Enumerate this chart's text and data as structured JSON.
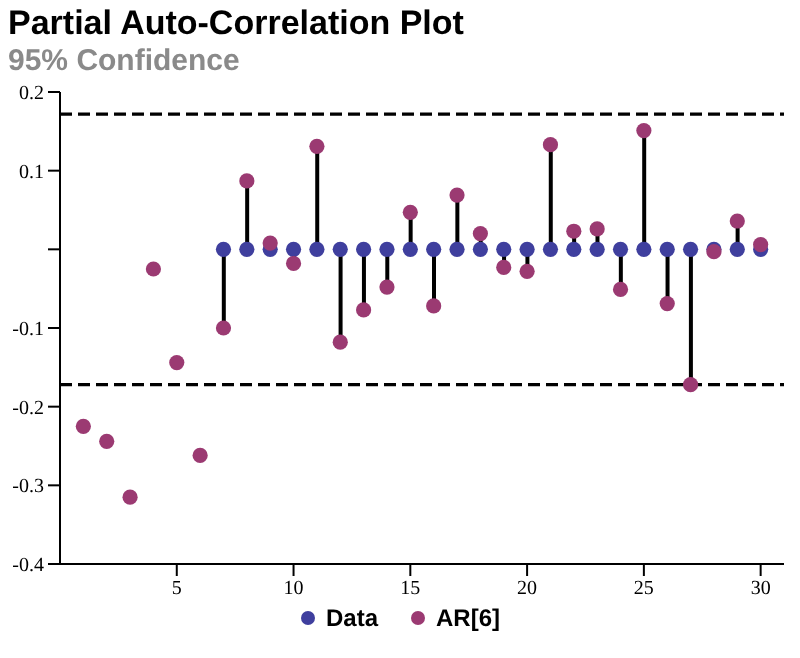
{
  "chart_data": {
    "type": "scatter",
    "title": "Partial Auto-Correlation Plot",
    "subtitle": "95% Confidence",
    "x": [
      1,
      2,
      3,
      4,
      5,
      6,
      7,
      8,
      9,
      10,
      11,
      12,
      13,
      14,
      15,
      16,
      17,
      18,
      19,
      20,
      21,
      22,
      23,
      24,
      25,
      26,
      27,
      28,
      29,
      30
    ],
    "series": [
      {
        "name": "Data",
        "color": "#3f3f9e",
        "values": [
          null,
          null,
          null,
          null,
          null,
          null,
          0,
          0,
          0,
          0,
          0,
          0,
          0,
          0,
          0,
          0,
          0,
          0,
          0,
          0,
          0,
          0,
          0,
          0,
          0,
          0,
          0,
          0,
          0,
          0
        ]
      },
      {
        "name": "AR[6]",
        "color": "#9b3a72",
        "values": [
          -0.225,
          -0.244,
          -0.315,
          -0.025,
          -0.144,
          -0.262,
          null,
          null,
          null,
          null,
          null,
          null,
          null,
          null,
          null,
          null,
          null,
          null,
          null,
          null,
          null,
          null,
          null,
          null,
          null,
          null,
          null,
          null,
          null,
          null
        ]
      },
      {
        "type": "lollipop",
        "color": "#9b3a72",
        "values": [
          null,
          null,
          null,
          null,
          null,
          null,
          -0.1,
          0.087,
          0.008,
          -0.018,
          0.131,
          -0.118,
          -0.077,
          -0.048,
          0.047,
          -0.072,
          0.069,
          0.02,
          -0.023,
          -0.028,
          0.133,
          0.023,
          0.026,
          -0.051,
          0.151,
          -0.069,
          -0.172,
          -0.003,
          0.036,
          0.006
        ]
      }
    ],
    "xlim": [
      0,
      31
    ],
    "xticks": [
      5,
      10,
      15,
      20,
      25,
      30
    ],
    "ylim": [
      -0.4,
      0.2
    ],
    "yticks": [
      -0.4,
      -0.3,
      -0.2,
      -0.1,
      {
        "value": 0,
        "label": null
      },
      0.1,
      0.2
    ],
    "ref_lines": [
      {
        "axis": "y",
        "value": 0.172,
        "line_style": "dashed",
        "color": "#000000"
      },
      {
        "axis": "y",
        "value": -0.172,
        "line_style": "dashed",
        "color": "#000000"
      }
    ],
    "marker": "circle",
    "legend": "bottom"
  }
}
